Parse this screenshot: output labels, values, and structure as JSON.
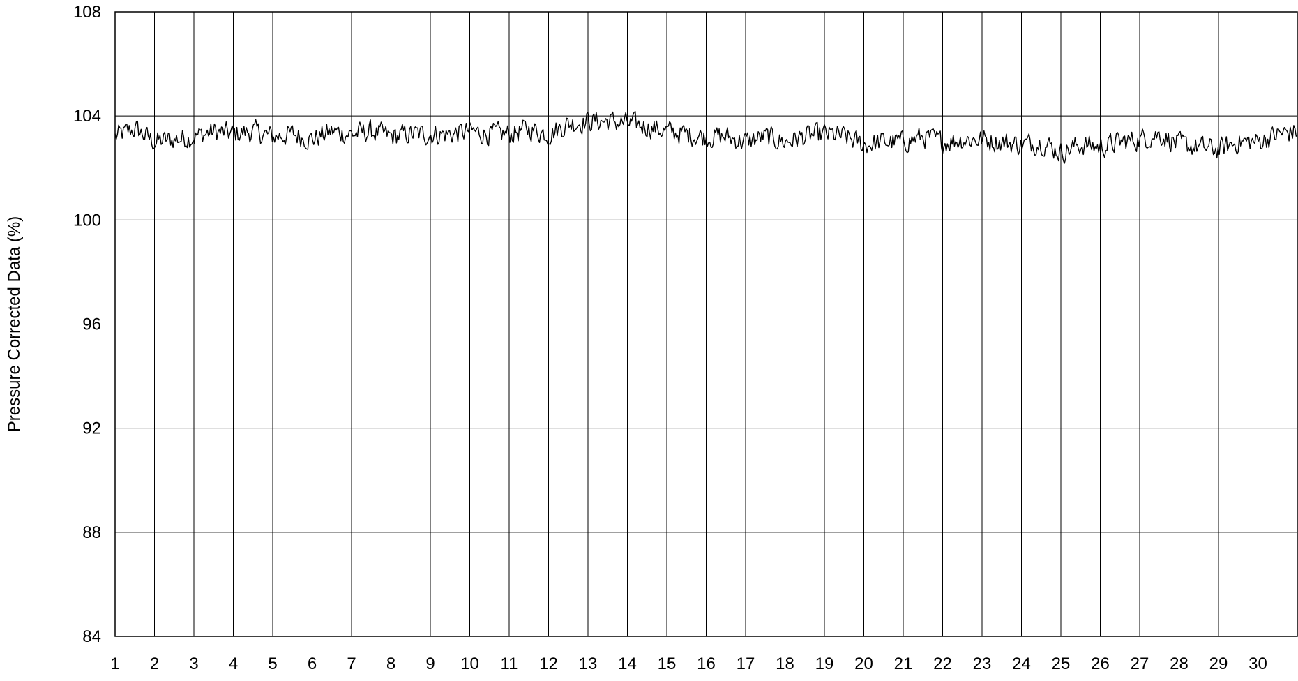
{
  "chart_data": {
    "type": "line",
    "title": "",
    "xlabel": "",
    "ylabel": "Pressure Corrected Data (%)",
    "ylim": [
      84,
      108
    ],
    "xlim": [
      1,
      31
    ],
    "yticks": [
      84,
      88,
      92,
      96,
      100,
      104,
      108
    ],
    "xticks": [
      1,
      2,
      3,
      4,
      5,
      6,
      7,
      8,
      9,
      10,
      11,
      12,
      13,
      14,
      15,
      16,
      17,
      18,
      19,
      20,
      21,
      22,
      23,
      24,
      25,
      26,
      27,
      28,
      29,
      30
    ],
    "grid": true,
    "legend": "none",
    "line_color": "#000000",
    "series": [
      {
        "x": [
          1,
          1.5,
          2,
          2.5,
          3,
          3.5,
          4,
          4.5,
          5,
          5.5,
          6,
          6.5,
          7,
          7.5,
          8,
          8.5,
          9,
          9.5,
          10,
          10.5,
          11,
          11.5,
          12,
          12.5,
          13,
          13.5,
          14,
          14.5,
          15,
          15.5,
          16,
          16.5,
          17,
          17.5,
          18,
          18.5,
          19,
          19.5,
          20,
          20.5,
          21,
          21.5,
          22,
          22.5,
          23,
          23.5,
          24,
          24.5,
          25,
          25.5,
          26,
          26.5,
          27,
          27.5,
          28,
          28.5,
          29,
          29.5,
          30,
          30.5,
          31
        ],
        "values": [
          103.2,
          103.5,
          103.0,
          103.1,
          103.2,
          103.4,
          103.3,
          103.4,
          103.2,
          103.3,
          103.1,
          103.4,
          103.3,
          103.4,
          103.2,
          103.3,
          103.3,
          103.3,
          103.4,
          103.3,
          103.3,
          103.5,
          103.3,
          103.7,
          103.8,
          103.8,
          103.7,
          103.6,
          103.4,
          103.3,
          103.2,
          103.2,
          103.0,
          103.2,
          103.0,
          103.2,
          103.3,
          103.2,
          102.9,
          103.0,
          103.0,
          103.2,
          103.0,
          103.1,
          103.1,
          103.0,
          102.9,
          103.0,
          102.6,
          102.9,
          102.8,
          103.0,
          103.1,
          103.3,
          102.9,
          102.8,
          102.7,
          103.0,
          103.0,
          103.3,
          103.4
        ]
      }
    ]
  }
}
